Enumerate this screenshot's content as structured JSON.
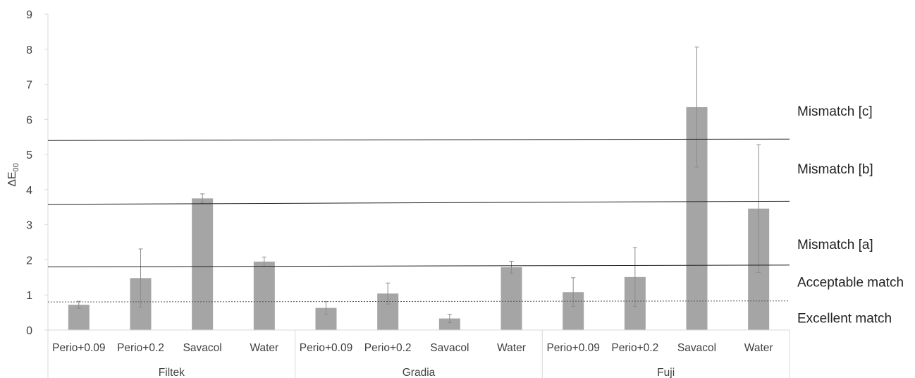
{
  "chart_data": {
    "type": "bar",
    "ylabel": "ΔE",
    "ylabel_sub": "00",
    "ylim": [
      0,
      9
    ],
    "yticks": [
      "0",
      "1",
      "2",
      "3",
      "4",
      "5",
      "6",
      "7",
      "8",
      "9"
    ],
    "grid": false,
    "groups": [
      {
        "name": "Filtek",
        "categories": [
          "Perio+0.09",
          "Perio+0.2",
          "Savacol",
          "Water"
        ],
        "values": [
          0.72,
          1.48,
          3.75,
          1.95
        ],
        "errors": [
          0.1,
          0.83,
          0.13,
          0.13
        ]
      },
      {
        "name": "Gradia",
        "categories": [
          "Perio+0.09",
          "Perio+0.2",
          "Savacol",
          "Water"
        ],
        "values": [
          0.63,
          1.04,
          0.33,
          1.79
        ],
        "errors": [
          0.18,
          0.3,
          0.12,
          0.17
        ]
      },
      {
        "name": "Fuji",
        "categories": [
          "Perio+0.09",
          "Perio+0.2",
          "Savacol",
          "Water"
        ],
        "values": [
          1.08,
          1.51,
          6.35,
          3.46
        ],
        "errors": [
          0.41,
          0.84,
          1.71,
          1.82
        ]
      }
    ],
    "bar_color": "#a5a5a5",
    "thresholds": [
      {
        "label": "Excellent match",
        "y_start": 0.8,
        "y_end": 0.83,
        "style": "dotted"
      },
      {
        "label": "Acceptable match",
        "y_start": 1.8,
        "y_end": 1.85,
        "style": "solid"
      },
      {
        "label": "Mismatch [a]",
        "y_start": 3.58,
        "y_end": 3.67,
        "style": "solid"
      },
      {
        "label": "Mismatch [b]",
        "y_start": 5.4,
        "y_end": 5.44,
        "style": "solid"
      },
      {
        "label": "Mismatch [c]",
        "y_start": null,
        "y_end": null,
        "style": "none"
      }
    ],
    "zone_label_values": [
      6.25,
      4.6,
      2.45,
      1.38,
      0.35
    ]
  }
}
